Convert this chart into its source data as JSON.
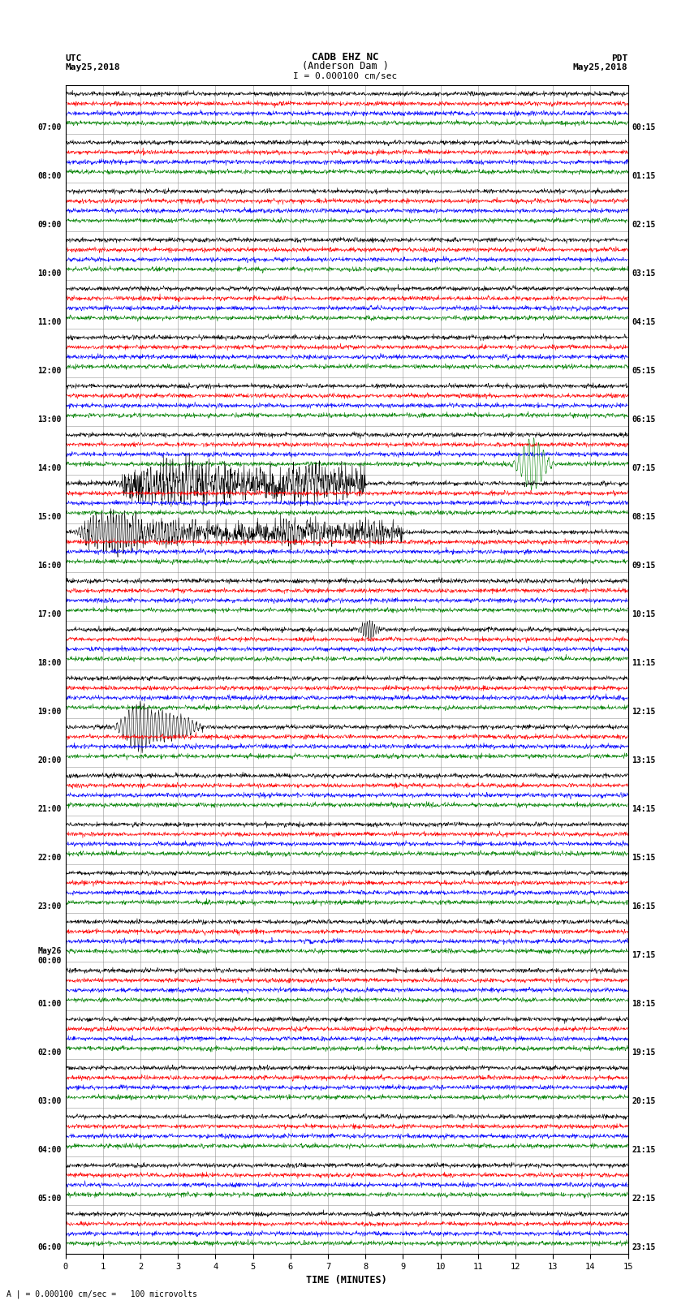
{
  "title_line1": "CADB EHZ NC",
  "title_line2": "(Anderson Dam )",
  "scale_text": "I = 0.000100 cm/sec",
  "utc_label": "UTC",
  "utc_date": "May25,2018",
  "pdt_label": "PDT",
  "pdt_date": "May25,2018",
  "bottom_label": "TIME (MINUTES)",
  "bottom_note": "A | = 0.000100 cm/sec =   100 microvolts",
  "num_rows": 24,
  "minutes_per_row": 15,
  "trace_colors": [
    "black",
    "red",
    "blue",
    "green"
  ],
  "bg_color": "white",
  "grid_color": "#888888",
  "left_labels": [
    "07:00",
    "08:00",
    "09:00",
    "10:00",
    "11:00",
    "12:00",
    "13:00",
    "14:00",
    "15:00",
    "16:00",
    "17:00",
    "18:00",
    "19:00",
    "20:00",
    "21:00",
    "22:00",
    "23:00",
    "May26\n00:00",
    "01:00",
    "02:00",
    "03:00",
    "04:00",
    "05:00",
    "06:00"
  ],
  "right_labels": [
    "00:15",
    "01:15",
    "02:15",
    "03:15",
    "04:15",
    "05:15",
    "06:15",
    "07:15",
    "08:15",
    "09:15",
    "10:15",
    "11:15",
    "12:15",
    "13:15",
    "14:15",
    "15:15",
    "16:15",
    "17:15",
    "18:15",
    "19:15",
    "20:15",
    "21:15",
    "22:15",
    "23:15"
  ]
}
